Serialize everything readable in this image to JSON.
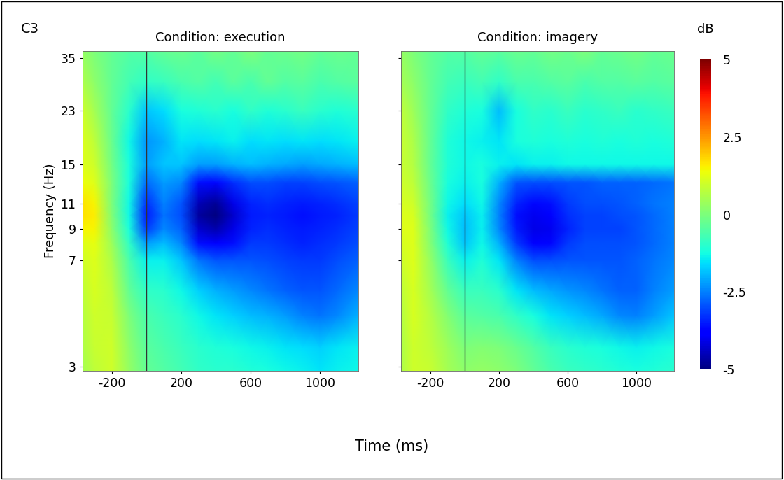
{
  "label": "C3",
  "x_label": "Time (ms)",
  "colorbar": {
    "label": "dB",
    "range": [
      -5,
      5
    ],
    "ticks": [
      5,
      2.5,
      0,
      -2.5,
      -5
    ]
  },
  "chart_data": [
    {
      "type": "heatmap",
      "title": "Condition: execution",
      "y_label": "Frequency (Hz)",
      "log": "y",
      "tick_labels": true,
      "vline": 0,
      "xlim": [
        -370,
        1220
      ],
      "xticks": [
        -200,
        200,
        600,
        1000
      ],
      "ylim": [
        2.9,
        37
      ],
      "yticks": [
        3,
        7,
        9,
        11,
        15,
        23,
        35
      ],
      "times": [
        -370,
        -300,
        -200,
        -100,
        0,
        100,
        200,
        300,
        400,
        500,
        600,
        700,
        800,
        900,
        1000,
        1100,
        1220
      ],
      "frequencies": [
        2.9,
        3.5,
        4.5,
        5.5,
        7,
        8,
        9,
        10,
        11,
        13,
        15,
        18,
        23,
        29,
        37
      ],
      "cells": [
        [
          0.5,
          0.8,
          1.0,
          0.3,
          -0.3,
          -0.5,
          -0.7,
          -0.9,
          -1.0,
          -1.0,
          -1.1,
          -1.2,
          -1.3,
          -1.4,
          -1.5,
          -1.4,
          -1.3
        ],
        [
          0.6,
          0.9,
          1.0,
          0.2,
          -0.4,
          -0.6,
          -0.8,
          -1.0,
          -1.1,
          -1.2,
          -1.3,
          -1.4,
          -1.5,
          -1.6,
          -1.7,
          -1.5,
          -1.4
        ],
        [
          0.7,
          1.0,
          0.9,
          0.0,
          -0.6,
          -0.8,
          -1.0,
          -1.3,
          -1.5,
          -1.7,
          -1.9,
          -2.0,
          -2.2,
          -2.5,
          -2.6,
          -2.4,
          -2.0
        ],
        [
          0.8,
          1.1,
          0.8,
          -0.3,
          -0.9,
          -1.0,
          -1.3,
          -1.7,
          -2.0,
          -2.2,
          -2.4,
          -2.6,
          -2.8,
          -2.9,
          -2.9,
          -2.7,
          -2.4
        ],
        [
          1.0,
          1.2,
          0.6,
          -0.6,
          -1.4,
          -1.4,
          -1.8,
          -2.6,
          -2.9,
          -2.9,
          -2.9,
          -3.0,
          -3.1,
          -3.2,
          -3.2,
          -3.0,
          -2.8
        ],
        [
          1.2,
          1.3,
          0.4,
          -0.9,
          -2.2,
          -1.9,
          -2.4,
          -3.6,
          -3.9,
          -3.6,
          -3.2,
          -3.2,
          -3.3,
          -3.4,
          -3.3,
          -3.2,
          -3.0
        ],
        [
          1.5,
          1.5,
          0.2,
          -1.2,
          -3.2,
          -2.4,
          -2.8,
          -4.3,
          -4.6,
          -4.1,
          -3.4,
          -3.3,
          -3.4,
          -3.5,
          -3.4,
          -3.3,
          -3.1
        ],
        [
          1.7,
          1.6,
          0.1,
          -1.3,
          -3.5,
          -2.6,
          -3.0,
          -4.7,
          -5.0,
          -4.3,
          -3.5,
          -3.4,
          -3.5,
          -3.6,
          -3.5,
          -3.4,
          -3.2
        ],
        [
          1.7,
          1.5,
          0.0,
          -1.3,
          -3.3,
          -2.5,
          -2.9,
          -4.5,
          -4.8,
          -4.1,
          -3.4,
          -3.3,
          -3.4,
          -3.5,
          -3.4,
          -3.3,
          -3.1
        ],
        [
          1.4,
          1.2,
          0.0,
          -1.2,
          -2.7,
          -2.2,
          -2.4,
          -3.6,
          -3.7,
          -3.3,
          -3.0,
          -3.0,
          -3.1,
          -3.1,
          -3.0,
          -2.9,
          -2.8
        ],
        [
          1.2,
          1.0,
          -0.1,
          -1.2,
          -2.2,
          -1.8,
          -1.8,
          -2.2,
          -2.2,
          -2.0,
          -1.9,
          -2.0,
          -2.1,
          -2.2,
          -2.1,
          -2.0,
          -1.9
        ],
        [
          1.2,
          0.8,
          -0.2,
          -1.3,
          -2.3,
          -2.0,
          -1.5,
          -1.6,
          -1.5,
          -1.4,
          -1.6,
          -1.5,
          -1.6,
          -1.5,
          -1.6,
          -1.5,
          -1.4
        ],
        [
          1.0,
          0.5,
          -0.3,
          -1.0,
          -1.8,
          -1.6,
          -1.2,
          -1.1,
          -1.0,
          -1.2,
          -0.9,
          -1.1,
          -1.0,
          -0.8,
          -1.0,
          -1.1,
          -1.0
        ],
        [
          0.6,
          0.2,
          -0.3,
          -0.7,
          -0.9,
          -0.8,
          -0.6,
          -0.5,
          -0.7,
          -0.4,
          -0.6,
          -0.3,
          -0.5,
          -0.4,
          -0.6,
          -0.5,
          -0.4
        ],
        [
          0.3,
          0.0,
          -0.3,
          -0.5,
          -0.5,
          -0.3,
          -0.2,
          -0.4,
          -0.1,
          -0.3,
          0.0,
          -0.3,
          -0.2,
          -0.1,
          -0.3,
          -0.2,
          -0.3
        ]
      ]
    },
    {
      "type": "heatmap",
      "title": "Condition: imagery",
      "log": "y",
      "tick_labels": "x",
      "vline": 0,
      "xlim": [
        -370,
        1220
      ],
      "xticks": [
        -200,
        200,
        600,
        1000
      ],
      "ylim": [
        2.9,
        37
      ],
      "yticks": [
        3,
        7,
        9,
        11,
        15,
        23,
        35
      ],
      "times": [
        -370,
        -300,
        -200,
        -100,
        0,
        100,
        200,
        300,
        400,
        500,
        600,
        700,
        800,
        900,
        1000,
        1100,
        1220
      ],
      "frequencies": [
        2.9,
        3.5,
        4.5,
        5.5,
        7,
        8,
        9,
        10,
        11,
        13,
        15,
        18,
        23,
        29,
        37
      ],
      "cells": [
        [
          0.6,
          1.0,
          0.9,
          0.5,
          0.2,
          0.3,
          0.2,
          0.0,
          -0.3,
          -0.6,
          -0.8,
          -0.9,
          -1.0,
          -1.1,
          -1.2,
          -1.1,
          -1.0
        ],
        [
          0.6,
          1.0,
          0.8,
          0.4,
          0.0,
          0.1,
          0.0,
          -0.2,
          -0.5,
          -0.8,
          -1.0,
          -1.1,
          -1.2,
          -1.3,
          -1.4,
          -1.3,
          -1.2
        ],
        [
          0.7,
          1.1,
          0.7,
          0.1,
          -0.4,
          -0.5,
          -0.6,
          -0.9,
          -1.2,
          -1.5,
          -1.7,
          -1.9,
          -2.1,
          -2.4,
          -2.5,
          -2.2,
          -1.8
        ],
        [
          0.8,
          1.1,
          0.5,
          -0.3,
          -0.8,
          -0.8,
          -1.0,
          -1.5,
          -1.9,
          -2.1,
          -2.3,
          -2.4,
          -2.6,
          -2.8,
          -2.8,
          -2.5,
          -2.2
        ],
        [
          1.0,
          1.2,
          0.3,
          -0.8,
          -1.4,
          -1.1,
          -1.5,
          -2.5,
          -3.0,
          -3.0,
          -2.9,
          -2.9,
          -2.9,
          -2.9,
          -2.8,
          -2.6,
          -2.4
        ],
        [
          1.1,
          1.2,
          0.1,
          -1.1,
          -1.8,
          -1.3,
          -2.0,
          -3.2,
          -3.8,
          -3.7,
          -3.2,
          -3.0,
          -3.0,
          -3.0,
          -2.9,
          -2.7,
          -2.5
        ],
        [
          1.2,
          1.2,
          0.0,
          -1.3,
          -1.9,
          -1.4,
          -2.4,
          -3.5,
          -4.1,
          -4.0,
          -3.4,
          -3.1,
          -3.1,
          -3.1,
          -2.9,
          -2.7,
          -2.5
        ],
        [
          1.2,
          1.1,
          -0.1,
          -1.4,
          -1.8,
          -1.4,
          -2.5,
          -3.6,
          -4.0,
          -3.9,
          -3.3,
          -3.1,
          -3.1,
          -3.0,
          -2.9,
          -2.7,
          -2.5
        ],
        [
          1.1,
          1.0,
          -0.1,
          -1.3,
          -1.6,
          -1.3,
          -2.4,
          -3.4,
          -3.7,
          -3.6,
          -3.2,
          -3.0,
          -3.0,
          -2.9,
          -2.8,
          -2.6,
          -2.5
        ],
        [
          1.0,
          0.8,
          -0.2,
          -1.2,
          -1.4,
          -1.2,
          -2.0,
          -2.9,
          -3.0,
          -3.0,
          -2.9,
          -2.9,
          -2.8,
          -2.8,
          -2.8,
          -2.7,
          -2.6
        ],
        [
          0.9,
          0.7,
          -0.3,
          -1.1,
          -1.3,
          -1.2,
          -1.4,
          -1.5,
          -1.4,
          -1.4,
          -1.3,
          -1.3,
          -1.3,
          -1.3,
          -1.3,
          -1.3,
          -1.3
        ],
        [
          0.9,
          0.6,
          -0.3,
          -1.1,
          -1.3,
          -1.4,
          -1.5,
          -1.2,
          -1.1,
          -1.2,
          -1.1,
          -1.2,
          -1.1,
          -1.2,
          -1.1,
          -1.2,
          -1.1
        ],
        [
          0.8,
          0.4,
          -0.3,
          -0.9,
          -1.1,
          -1.2,
          -1.9,
          -1.2,
          -0.9,
          -1.0,
          -0.8,
          -1.0,
          -0.9,
          -0.8,
          -1.0,
          -0.9,
          -0.8
        ],
        [
          0.5,
          0.2,
          -0.3,
          -0.7,
          -0.8,
          -0.7,
          -0.9,
          -0.6,
          -0.6,
          -0.5,
          -0.4,
          -0.6,
          -0.5,
          -0.5,
          -0.4,
          -0.5,
          -0.4
        ],
        [
          0.3,
          0.0,
          -0.3,
          -0.5,
          -0.5,
          -0.3,
          -0.4,
          -0.2,
          -0.3,
          -0.1,
          -0.2,
          0.0,
          -0.3,
          -0.2,
          -0.1,
          -0.3,
          -0.2
        ]
      ]
    }
  ]
}
